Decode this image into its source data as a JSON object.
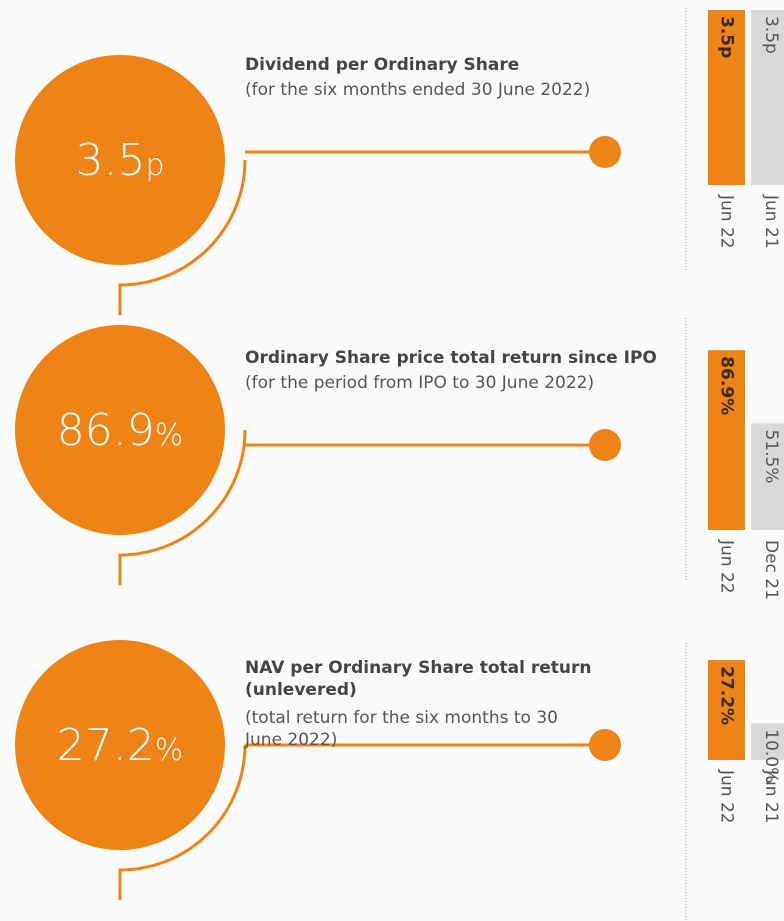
{
  "chart_data": [
    {
      "type": "bar",
      "title": "Dividend per Ordinary Share",
      "subtitle": "(for the six months ended 30 June 2022)",
      "headline": "3.5",
      "headline_unit": "p",
      "categories": [
        "Jun 22",
        "Jun 21"
      ],
      "values": [
        3.5,
        3.5
      ],
      "value_labels": [
        "3.5p",
        "3.5p"
      ],
      "colors": [
        "#ee8316",
        "#d9d9d9"
      ],
      "ylim": [
        0,
        3.6
      ]
    },
    {
      "type": "bar",
      "title": "Ordinary Share price total return since IPO",
      "subtitle": "(for the period from IPO to 30 June 2022)",
      "headline": "86.9",
      "headline_unit": "%",
      "categories": [
        "Jun 22",
        "Dec 21"
      ],
      "values": [
        86.9,
        51.5
      ],
      "value_labels": [
        "86.9%",
        "51.5%"
      ],
      "colors": [
        "#ee8316",
        "#d9d9d9"
      ],
      "ylim": [
        0,
        87
      ]
    },
    {
      "type": "bar",
      "title": "NAV per Ordinary Share total return (unlevered)",
      "subtitle": "(total return for the six months to 30 June 2022)",
      "headline": "27.2",
      "headline_unit": "%",
      "categories": [
        "Jun 22",
        "Jun 21"
      ],
      "values": [
        27.2,
        10
      ],
      "value_labels": [
        "27.2%",
        "10.0%"
      ],
      "colors": [
        "#ee8316",
        "#d9d9d9"
      ],
      "ylim": [
        0,
        49
      ]
    }
  ]
}
